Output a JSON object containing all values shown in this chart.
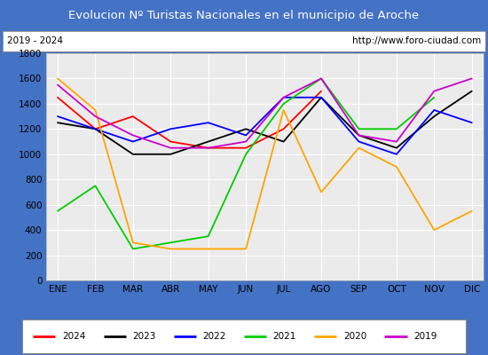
{
  "title": "Evolucion Nº Turistas Nacionales en el municipio de Aroche",
  "subtitle_left": "2019 - 2024",
  "subtitle_right": "http://www.foro-ciudad.com",
  "months": [
    "ENE",
    "FEB",
    "MAR",
    "ABR",
    "MAY",
    "JUN",
    "JUL",
    "AGO",
    "SEP",
    "OCT",
    "NOV",
    "DIC"
  ],
  "series": {
    "2024": [
      1450,
      1200,
      1300,
      1100,
      1050,
      1050,
      1200,
      1500,
      null,
      null,
      null,
      null
    ],
    "2023": [
      1250,
      1200,
      1000,
      1000,
      1100,
      1200,
      1100,
      1450,
      1150,
      1050,
      1300,
      1500
    ],
    "2022": [
      1300,
      1200,
      1100,
      1200,
      1250,
      1150,
      1450,
      1450,
      1100,
      1000,
      1350,
      1250
    ],
    "2021": [
      550,
      750,
      250,
      300,
      350,
      1000,
      1400,
      1600,
      1200,
      1200,
      1450,
      null
    ],
    "2020": [
      1600,
      1350,
      300,
      250,
      250,
      250,
      1350,
      700,
      1050,
      900,
      400,
      550
    ],
    "2019": [
      1550,
      1300,
      1150,
      1050,
      1050,
      1100,
      1450,
      1600,
      1150,
      1100,
      1500,
      1600
    ]
  },
  "colors": {
    "2024": "#ff0000",
    "2023": "#000000",
    "2022": "#0000ff",
    "2021": "#00cc00",
    "2020": "#ffa500",
    "2019": "#cc00cc"
  },
  "ylim": [
    0,
    1800
  ],
  "yticks": [
    0,
    200,
    400,
    600,
    800,
    1000,
    1200,
    1400,
    1600,
    1800
  ],
  "title_bg": "#4472c4",
  "title_color": "#ffffff",
  "plot_bg": "#ebebeb",
  "grid_color": "#ffffff",
  "border_color": "#4472c4",
  "fig_width": 5.5,
  "fig_height": 4.0,
  "dpi": 100
}
